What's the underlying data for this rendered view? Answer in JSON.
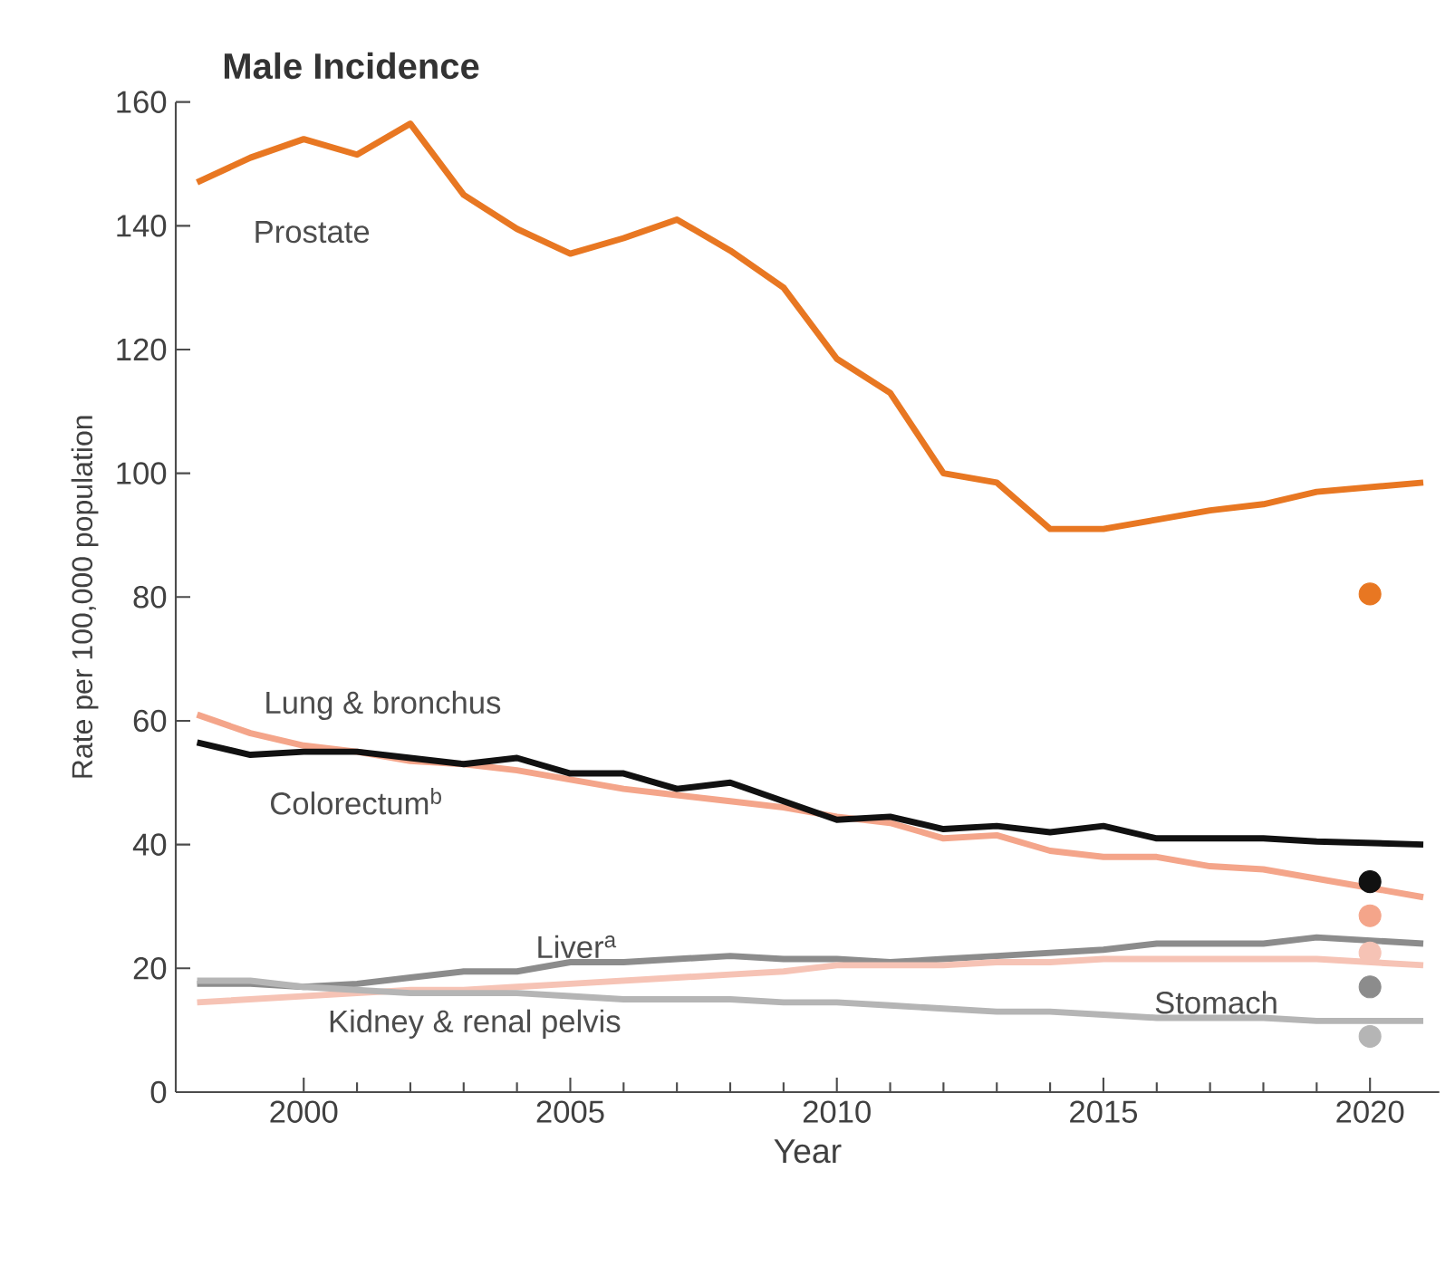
{
  "chart_data": {
    "type": "line",
    "title": "Male Incidence",
    "xlabel": "Year",
    "ylabel": "Rate per 100,000 population",
    "xlim": [
      1997.6,
      2021.3
    ],
    "xticks": [
      2000,
      2005,
      2010,
      2015,
      2020
    ],
    "ylim": [
      0,
      160
    ],
    "yticks": [
      0,
      20,
      40,
      60,
      80,
      100,
      120,
      140,
      160
    ],
    "grid": false,
    "legend": false,
    "series": [
      {
        "name": "Prostate",
        "color": "#e87722",
        "x": [
          1998,
          1999,
          2000,
          2001,
          2002,
          2003,
          2004,
          2005,
          2006,
          2007,
          2008,
          2009,
          2010,
          2011,
          2012,
          2013,
          2014,
          2015,
          2016,
          2017,
          2018,
          2019,
          2021
        ],
        "values": [
          147,
          151,
          154,
          151.5,
          156.5,
          145,
          139.5,
          135.5,
          138,
          141,
          136,
          130,
          118.5,
          113,
          100,
          98.5,
          91,
          91,
          92.5,
          94,
          95,
          97,
          98.5
        ]
      },
      {
        "name": "Lung & bronchus",
        "color": "#f4a58a",
        "x": [
          1998,
          1999,
          2000,
          2001,
          2002,
          2003,
          2004,
          2005,
          2006,
          2007,
          2008,
          2009,
          2010,
          2011,
          2012,
          2013,
          2014,
          2015,
          2016,
          2017,
          2018,
          2019,
          2021
        ],
        "values": [
          61,
          58,
          56,
          55,
          53.5,
          53,
          52,
          50.5,
          49,
          48,
          47,
          46,
          44.5,
          43.5,
          41,
          41.5,
          39,
          38,
          38,
          36.5,
          36,
          34.5,
          31.5
        ]
      },
      {
        "name": "Colorectum$^{b}$",
        "color": "#111111",
        "x": [
          1998,
          1999,
          2000,
          2001,
          2002,
          2003,
          2004,
          2005,
          2006,
          2007,
          2008,
          2009,
          2010,
          2011,
          2012,
          2013,
          2014,
          2015,
          2016,
          2017,
          2018,
          2019,
          2021
        ],
        "values": [
          56.5,
          54.5,
          55,
          55,
          54,
          53,
          54,
          51.5,
          51.5,
          49,
          50,
          47,
          44,
          44.5,
          42.5,
          43,
          42,
          43,
          41,
          41,
          41,
          40.5,
          40
        ]
      },
      {
        "name": "Liver$^{a}$",
        "color": "#8c8c8c",
        "x": [
          1998,
          1999,
          2000,
          2001,
          2002,
          2003,
          2004,
          2005,
          2006,
          2007,
          2008,
          2009,
          2010,
          2011,
          2012,
          2013,
          2014,
          2015,
          2016,
          2017,
          2018,
          2019,
          2021
        ],
        "values": [
          17.5,
          17.5,
          17,
          17.5,
          18.5,
          19.5,
          19.5,
          21,
          21,
          21.5,
          22,
          21.5,
          21.5,
          21,
          21.5,
          22,
          22.5,
          23,
          24,
          24,
          24,
          25,
          24
        ]
      },
      {
        "name": "Kidney & renal pelvis",
        "color": "#f6c3b5",
        "x": [
          1998,
          1999,
          2000,
          2001,
          2002,
          2003,
          2004,
          2005,
          2006,
          2007,
          2008,
          2009,
          2010,
          2011,
          2012,
          2013,
          2014,
          2015,
          2016,
          2017,
          2018,
          2019,
          2021
        ],
        "values": [
          14.5,
          15,
          15.5,
          16,
          16.5,
          16.5,
          17,
          17.5,
          18,
          18.5,
          19,
          19.5,
          20.5,
          20.5,
          20.5,
          21,
          21,
          21.5,
          21.5,
          21.5,
          21.5,
          21.5,
          20.5
        ]
      },
      {
        "name": "Stomach",
        "color": "#b5b5b5",
        "x": [
          1998,
          1999,
          2000,
          2001,
          2002,
          2003,
          2004,
          2005,
          2006,
          2007,
          2008,
          2009,
          2010,
          2011,
          2012,
          2013,
          2014,
          2015,
          2016,
          2017,
          2018,
          2019,
          2021
        ],
        "values": [
          18,
          18,
          17,
          16.5,
          16,
          16,
          16,
          15.5,
          15,
          15,
          15,
          14.5,
          14.5,
          14,
          13.5,
          13,
          13,
          12.5,
          12,
          12,
          12,
          11.5,
          11.5
        ]
      },
      {
        "type": "scatter",
        "marker": "circle",
        "x": [
          2020,
          2020,
          2020,
          2020,
          2020,
          2020
        ],
        "values": [
          80.5,
          34,
          28.5,
          22.5,
          17,
          9
        ],
        "colors": [
          "#e87722",
          "#111111",
          "#f4a58a",
          "#f6c3b5",
          "#8c8c8c",
          "#b5b5b5"
        ]
      }
    ]
  }
}
